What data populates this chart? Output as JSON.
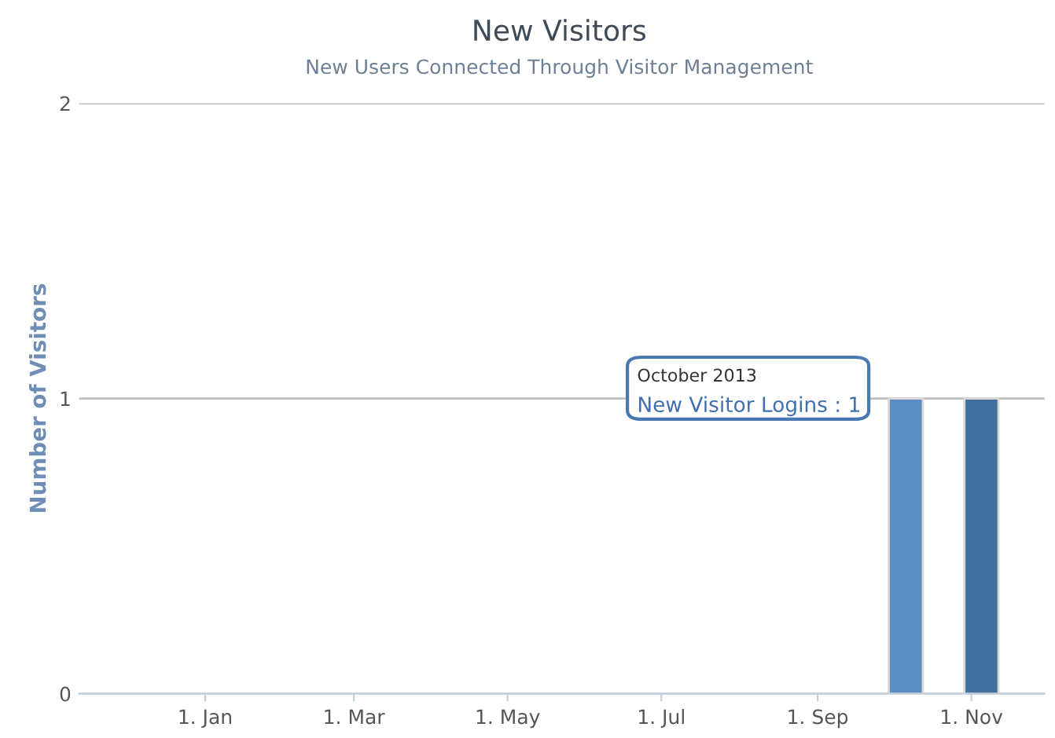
{
  "chart_data": {
    "type": "bar",
    "title": "New Visitors",
    "subtitle": "New Users Connected Through Visitor Management",
    "ylabel": "Number of Visitors",
    "x": [
      "2013-10-06",
      "2013-11-05"
    ],
    "series": [
      {
        "values": [
          1,
          1
        ],
        "colors": [
          "#5b8cc4",
          "#41709f"
        ]
      }
    ],
    "xlim": [
      "2012-11-12",
      "2013-11-30"
    ],
    "xticks": [
      {
        "value": "2013-01-01",
        "label": "1. Jan"
      },
      {
        "value": "2013-03-01",
        "label": "1. Mar"
      },
      {
        "value": "2013-05-01",
        "label": "1. May"
      },
      {
        "value": "2013-07-01",
        "label": "1. Jul"
      },
      {
        "value": "2013-09-01",
        "label": "1. Sep"
      },
      {
        "value": "2013-11-01",
        "label": "1. Nov"
      }
    ],
    "ylim": [
      0,
      2
    ],
    "yticks": [
      0,
      1,
      2
    ],
    "grid": "y",
    "annotations": [
      "October 2013",
      "New Visitor Logins : 1"
    ]
  }
}
